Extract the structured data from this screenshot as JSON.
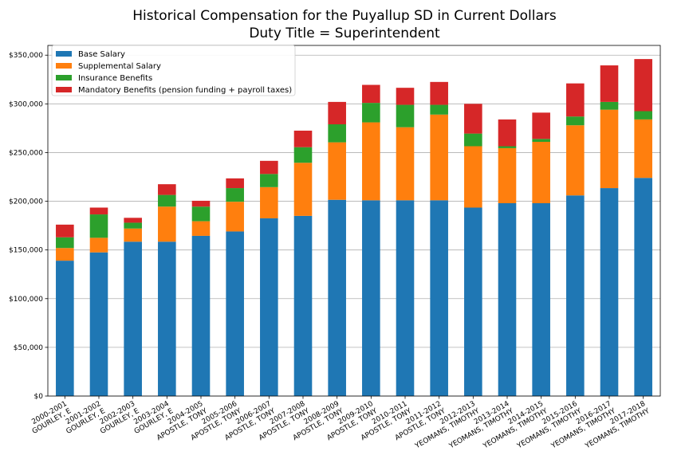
{
  "chart_data": {
    "type": "bar",
    "stacked": true,
    "title": "Historical Compensation for the Puyallup SD in Current Dollars",
    "subtitle": "Duty Title = Superintendent",
    "xlabel": "",
    "ylabel": "",
    "ylim": [
      0,
      360000
    ],
    "yticks": [
      0,
      50000,
      100000,
      150000,
      200000,
      250000,
      300000,
      350000
    ],
    "ytick_labels": [
      "$0",
      "$50,000",
      "$100,000",
      "$150,000",
      "$200,000",
      "$250,000",
      "$300,000",
      "$350,000"
    ],
    "grid": "horizontal",
    "legend_placement": "top-left",
    "categories": [
      [
        "2000-2001",
        "GOURLEY, E"
      ],
      [
        "2001-2002",
        "GOURLEY, E"
      ],
      [
        "2002-2003",
        "GOURLEY, E"
      ],
      [
        "2003-2004",
        "GOURLEY, E"
      ],
      [
        "2004-2005",
        "APOSTLE, TONY"
      ],
      [
        "2005-2006",
        "APOSTLE, TONY"
      ],
      [
        "2006-2007",
        "APOSTLE, TONY"
      ],
      [
        "2007-2008",
        "APOSTLE, TONY"
      ],
      [
        "2008-2009",
        "APOSTLE, TONY"
      ],
      [
        "2009-2010",
        "APOSTLE, TONY"
      ],
      [
        "2010-2011",
        "APOSTLE, TONY"
      ],
      [
        "2011-2012",
        "APOSTLE, TONY"
      ],
      [
        "2012-2013",
        "YEOMANS, TIMOTHY"
      ],
      [
        "2013-2014",
        "YEOMANS, TIMOTHY"
      ],
      [
        "2014-2015",
        "YEOMANS, TIMOTHY"
      ],
      [
        "2015-2016",
        "YEOMANS, TIMOTHY"
      ],
      [
        "2016-2017",
        "YEOMANS, TIMOTHY"
      ],
      [
        "2017-2018",
        "YEOMANS, TIMOTHY"
      ]
    ],
    "series": [
      {
        "name": "Base Salary",
        "color": "#1f77b4",
        "values": [
          139000,
          147500,
          158500,
          158500,
          164500,
          169000,
          182500,
          185000,
          201500,
          201000,
          201000,
          201000,
          193500,
          198000,
          198000,
          206000,
          213500,
          224000
        ]
      },
      {
        "name": "Supplemental Salary",
        "color": "#ff7f0e",
        "values": [
          13000,
          15000,
          13500,
          36000,
          15000,
          30500,
          32000,
          54500,
          59000,
          80000,
          75000,
          88000,
          63000,
          56500,
          63000,
          72000,
          80500,
          60000
        ]
      },
      {
        "name": "Insurance Benefits",
        "color": "#2ca02c",
        "values": [
          11000,
          24000,
          6000,
          12000,
          15000,
          14000,
          13500,
          16000,
          18500,
          20000,
          23000,
          10000,
          13000,
          2000,
          3000,
          9000,
          8000,
          8500
        ]
      },
      {
        "name": "Mandatory Benefits (pension funding + payroll taxes)",
        "color": "#d62728",
        "values": [
          13000,
          7000,
          5000,
          11000,
          6000,
          10000,
          13500,
          17000,
          23000,
          18500,
          17500,
          23500,
          30500,
          27500,
          27000,
          34000,
          37500,
          53500
        ]
      }
    ]
  }
}
